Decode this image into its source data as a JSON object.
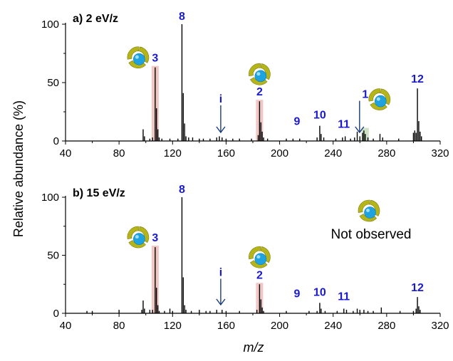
{
  "colors": {
    "peak_label": "#1a1ad0",
    "highlight_red": "#efc1bd",
    "highlight_green": "#c9dfbf",
    "ring": "#b5b51a",
    "sphere": "#1fa3e0",
    "axis": "#000000"
  },
  "icons": [
    "torus-complex-icon",
    "arrow-down-icon"
  ],
  "chart_data": [
    {
      "type": "bar",
      "subtype": "mass-spectrum",
      "title": "a) 2 eV/z",
      "xlabel": "m/z",
      "ylabel": "Relative abundance (%)",
      "xlim": [
        40,
        320
      ],
      "ylim": [
        0,
        100
      ],
      "xticks": [
        "40",
        "80",
        "120",
        "160",
        "200",
        "240",
        "280",
        "320"
      ],
      "yticks": [
        "0",
        "50",
        "100"
      ],
      "grid": false,
      "peaks": [
        {
          "x": 98,
          "y": 10
        },
        {
          "x": 99,
          "y": 4
        },
        {
          "x": 103,
          "y": 2
        },
        {
          "x": 105,
          "y": 3
        },
        {
          "x": 107,
          "y": 63
        },
        {
          "x": 108,
          "y": 28
        },
        {
          "x": 109,
          "y": 10
        },
        {
          "x": 110,
          "y": 3
        },
        {
          "x": 112,
          "y": 2
        },
        {
          "x": 118,
          "y": 2
        },
        {
          "x": 124,
          "y": 2
        },
        {
          "x": 127,
          "y": 100
        },
        {
          "x": 128,
          "y": 41
        },
        {
          "x": 129,
          "y": 15
        },
        {
          "x": 130,
          "y": 4
        },
        {
          "x": 132,
          "y": 3
        },
        {
          "x": 135,
          "y": 3
        },
        {
          "x": 140,
          "y": 2
        },
        {
          "x": 143,
          "y": 2
        },
        {
          "x": 148,
          "y": 2
        },
        {
          "x": 153,
          "y": 3
        },
        {
          "x": 155,
          "y": 4
        },
        {
          "x": 157,
          "y": 3
        },
        {
          "x": 160,
          "y": 2
        },
        {
          "x": 165,
          "y": 2
        },
        {
          "x": 170,
          "y": 2
        },
        {
          "x": 179,
          "y": 2
        },
        {
          "x": 184,
          "y": 5
        },
        {
          "x": 185,
          "y": 34
        },
        {
          "x": 186,
          "y": 16
        },
        {
          "x": 187,
          "y": 8
        },
        {
          "x": 188,
          "y": 3
        },
        {
          "x": 191,
          "y": 2
        },
        {
          "x": 205,
          "y": 2
        },
        {
          "x": 210,
          "y": 2
        },
        {
          "x": 215,
          "y": 2
        },
        {
          "x": 228,
          "y": 3
        },
        {
          "x": 230,
          "y": 13
        },
        {
          "x": 231,
          "y": 6
        },
        {
          "x": 233,
          "y": 3
        },
        {
          "x": 242,
          "y": 2
        },
        {
          "x": 247,
          "y": 3
        },
        {
          "x": 249,
          "y": 4
        },
        {
          "x": 253,
          "y": 2
        },
        {
          "x": 256,
          "y": 3
        },
        {
          "x": 258,
          "y": 8
        },
        {
          "x": 260,
          "y": 4
        },
        {
          "x": 262,
          "y": 7
        },
        {
          "x": 263,
          "y": 9
        },
        {
          "x": 264,
          "y": 6
        },
        {
          "x": 266,
          "y": 3
        },
        {
          "x": 270,
          "y": 2
        },
        {
          "x": 275,
          "y": 6
        },
        {
          "x": 277,
          "y": 3
        },
        {
          "x": 289,
          "y": 2
        },
        {
          "x": 300,
          "y": 7
        },
        {
          "x": 301,
          "y": 9
        },
        {
          "x": 302,
          "y": 7
        },
        {
          "x": 303,
          "y": 45
        },
        {
          "x": 304,
          "y": 17
        },
        {
          "x": 305,
          "y": 8
        },
        {
          "x": 306,
          "y": 4
        }
      ],
      "annotations": [
        {
          "label": "8",
          "x": 127,
          "y": 100,
          "highlight": "none",
          "icon": false
        },
        {
          "label": "3",
          "x": 107,
          "y": 63,
          "highlight": "red",
          "icon": true
        },
        {
          "label": "2",
          "x": 185,
          "y": 34,
          "highlight": "red",
          "icon": true
        },
        {
          "label": "i",
          "x": 156,
          "y": 5,
          "highlight": "none",
          "icon": false,
          "arrow": true
        },
        {
          "label": "9",
          "x": 213,
          "y": 4,
          "highlight": "none",
          "icon": false
        },
        {
          "label": "10",
          "x": 230,
          "y": 13,
          "highlight": "none",
          "icon": false
        },
        {
          "label": "11",
          "x": 248,
          "y": 4,
          "highlight": "none",
          "icon": false
        },
        {
          "label": "1",
          "x": 264,
          "y": 10,
          "highlight": "green",
          "icon": true,
          "arrow": true
        },
        {
          "label": "12",
          "x": 303,
          "y": 45,
          "highlight": "none",
          "icon": false
        }
      ],
      "note": ""
    },
    {
      "type": "bar",
      "subtype": "mass-spectrum",
      "title": "b) 15 eV/z",
      "xlabel": "m/z",
      "ylabel": "Relative abundance (%)",
      "xlim": [
        40,
        320
      ],
      "ylim": [
        0,
        100
      ],
      "xticks": [
        "40",
        "80",
        "120",
        "160",
        "200",
        "240",
        "280",
        "320"
      ],
      "yticks": [
        "0",
        "50",
        "100"
      ],
      "grid": false,
      "peaks": [
        {
          "x": 56,
          "y": 2
        },
        {
          "x": 60,
          "y": 2
        },
        {
          "x": 80,
          "y": 3
        },
        {
          "x": 97,
          "y": 3
        },
        {
          "x": 98,
          "y": 11
        },
        {
          "x": 99,
          "y": 4
        },
        {
          "x": 103,
          "y": 3
        },
        {
          "x": 105,
          "y": 3
        },
        {
          "x": 107,
          "y": 57
        },
        {
          "x": 108,
          "y": 22
        },
        {
          "x": 109,
          "y": 7
        },
        {
          "x": 110,
          "y": 2
        },
        {
          "x": 114,
          "y": 2
        },
        {
          "x": 118,
          "y": 4
        },
        {
          "x": 120,
          "y": 2
        },
        {
          "x": 127,
          "y": 100
        },
        {
          "x": 128,
          "y": 31
        },
        {
          "x": 129,
          "y": 7
        },
        {
          "x": 130,
          "y": 3
        },
        {
          "x": 134,
          "y": 2
        },
        {
          "x": 140,
          "y": 3
        },
        {
          "x": 145,
          "y": 2
        },
        {
          "x": 148,
          "y": 2
        },
        {
          "x": 153,
          "y": 3
        },
        {
          "x": 157,
          "y": 3
        },
        {
          "x": 160,
          "y": 2
        },
        {
          "x": 170,
          "y": 2
        },
        {
          "x": 183,
          "y": 3
        },
        {
          "x": 185,
          "y": 25
        },
        {
          "x": 186,
          "y": 12
        },
        {
          "x": 187,
          "y": 5
        },
        {
          "x": 188,
          "y": 2
        },
        {
          "x": 205,
          "y": 2
        },
        {
          "x": 222,
          "y": 2
        },
        {
          "x": 228,
          "y": 2
        },
        {
          "x": 230,
          "y": 9
        },
        {
          "x": 231,
          "y": 4
        },
        {
          "x": 234,
          "y": 2
        },
        {
          "x": 243,
          "y": 2
        },
        {
          "x": 248,
          "y": 4
        },
        {
          "x": 250,
          "y": 3
        },
        {
          "x": 255,
          "y": 2
        },
        {
          "x": 258,
          "y": 4
        },
        {
          "x": 260,
          "y": 3
        },
        {
          "x": 263,
          "y": 3
        },
        {
          "x": 266,
          "y": 2
        },
        {
          "x": 270,
          "y": 2
        },
        {
          "x": 276,
          "y": 5
        },
        {
          "x": 290,
          "y": 2
        },
        {
          "x": 300,
          "y": 2
        },
        {
          "x": 302,
          "y": 4
        },
        {
          "x": 303,
          "y": 14
        },
        {
          "x": 304,
          "y": 6
        },
        {
          "x": 305,
          "y": 3
        }
      ],
      "annotations": [
        {
          "label": "8",
          "x": 127,
          "y": 100,
          "highlight": "none",
          "icon": false
        },
        {
          "label": "3",
          "x": 107,
          "y": 57,
          "highlight": "red",
          "icon": true
        },
        {
          "label": "2",
          "x": 185,
          "y": 25,
          "highlight": "red",
          "icon": true
        },
        {
          "label": "i",
          "x": 156,
          "y": 4,
          "highlight": "none",
          "icon": false,
          "arrow": true
        },
        {
          "label": "9",
          "x": 213,
          "y": 4,
          "highlight": "none",
          "icon": false
        },
        {
          "label": "10",
          "x": 230,
          "y": 9,
          "highlight": "none",
          "icon": false
        },
        {
          "label": "11",
          "x": 248,
          "y": 4,
          "highlight": "none",
          "icon": false
        },
        {
          "label": "12",
          "x": 303,
          "y": 14,
          "highlight": "none",
          "icon": false
        }
      ],
      "note": "Not observed"
    }
  ]
}
